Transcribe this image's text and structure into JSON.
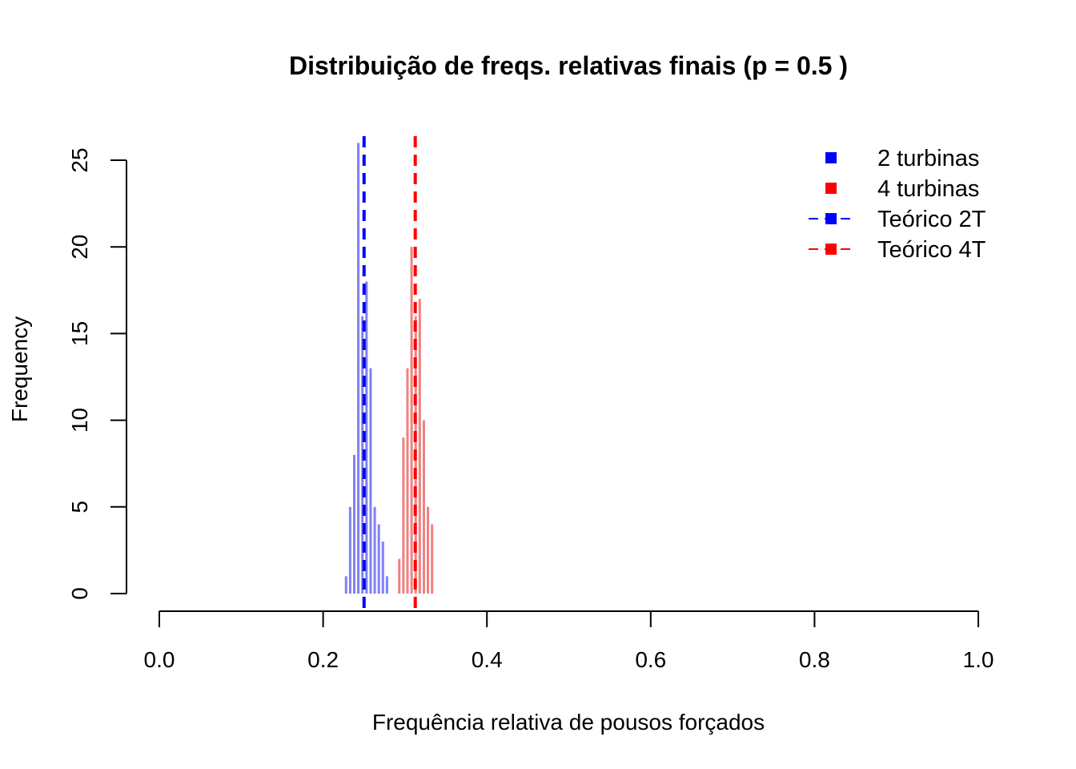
{
  "chart_data": {
    "type": "bar",
    "title": "Distribuição de freqs. relativas finais (p = 0.5 )",
    "xlabel": "Frequência relativa de pousos forçados",
    "ylabel": "Frequency",
    "xlim": [
      0,
      1
    ],
    "ylim": [
      0,
      26
    ],
    "x_ticks": [
      "0.0",
      "0.2",
      "0.4",
      "0.6",
      "0.8",
      "1.0"
    ],
    "x_tick_values": [
      0,
      0.2,
      0.4,
      0.6,
      0.8,
      1.0
    ],
    "y_ticks": [
      "0",
      "5",
      "10",
      "15",
      "20",
      "25"
    ],
    "y_tick_values": [
      0,
      5,
      10,
      15,
      20,
      25
    ],
    "grid": false,
    "legend_position": "top-right",
    "series": [
      {
        "name": "2 turbinas",
        "color": "#8080f0",
        "x": [
          0.228,
          0.233,
          0.238,
          0.243,
          0.248,
          0.253,
          0.258,
          0.263,
          0.268,
          0.273,
          0.278
        ],
        "values": [
          1,
          5,
          8,
          26,
          16,
          18,
          13,
          5,
          4,
          3,
          1
        ]
      },
      {
        "name": "4 turbinas",
        "color": "#f08080",
        "x": [
          0.293,
          0.298,
          0.303,
          0.308,
          0.313,
          0.318,
          0.323,
          0.328,
          0.333
        ],
        "values": [
          2,
          9,
          13,
          20,
          16,
          17,
          10,
          5,
          4
        ]
      }
    ],
    "reference_lines": [
      {
        "name": "Teórico 2T",
        "x": 0.25,
        "color": "#0000ff",
        "style": "dashed"
      },
      {
        "name": "Teórico 4T",
        "x": 0.3125,
        "color": "#ff0000",
        "style": "dashed"
      }
    ],
    "legend": [
      {
        "label": "2 turbinas",
        "color": "#0000ff",
        "line": false
      },
      {
        "label": "4 turbinas",
        "color": "#ff0000",
        "line": false
      },
      {
        "label": "Teórico 2T",
        "color": "#0000ff",
        "line": true
      },
      {
        "label": "Teórico 4T",
        "color": "#ff0000",
        "line": true
      }
    ]
  }
}
